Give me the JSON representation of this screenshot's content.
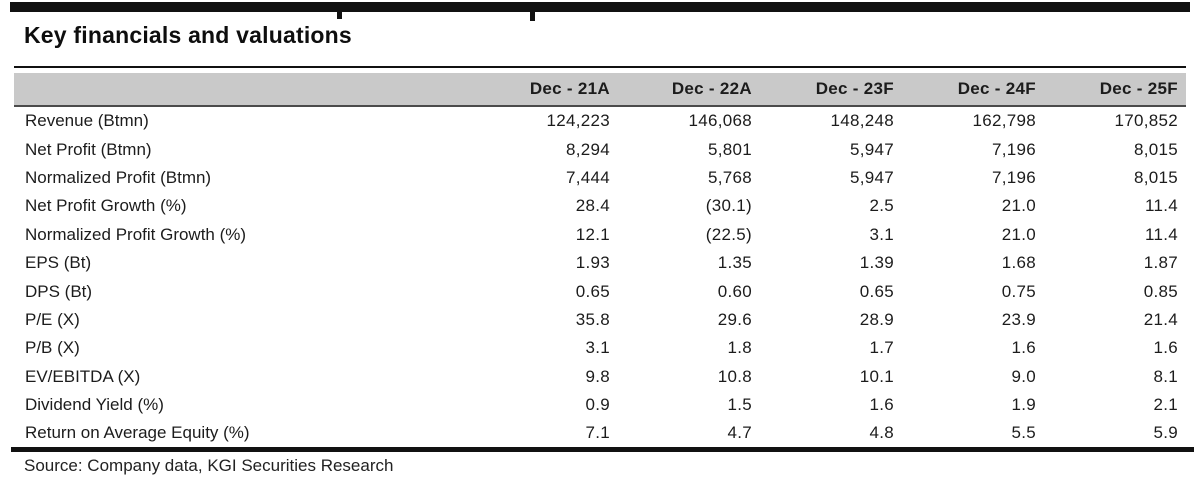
{
  "title": "Key financials and valuations",
  "source": "Source: Company data, KGI Securities Research",
  "table": {
    "header": [
      "Dec - 21A",
      "Dec - 22A",
      "Dec - 23F",
      "Dec - 24F",
      "Dec - 25F"
    ],
    "rows": [
      {
        "label": "Revenue (Btmn)",
        "values": [
          "124,223",
          "146,068",
          "148,248",
          "162,798",
          "170,852"
        ]
      },
      {
        "label": "Net Profit (Btmn)",
        "values": [
          "8,294",
          "5,801",
          "5,947",
          "7,196",
          "8,015"
        ]
      },
      {
        "label": "Normalized Profit (Btmn)",
        "values": [
          "7,444",
          "5,768",
          "5,947",
          "7,196",
          "8,015"
        ]
      },
      {
        "label": "Net Profit Growth (%)",
        "values": [
          "28.4",
          "(30.1)",
          "2.5",
          "21.0",
          "11.4"
        ]
      },
      {
        "label": "Normalized Profit Growth (%)",
        "values": [
          "12.1",
          "(22.5)",
          "3.1",
          "21.0",
          "11.4"
        ]
      },
      {
        "label": "EPS (Bt)",
        "values": [
          "1.93",
          "1.35",
          "1.39",
          "1.68",
          "1.87"
        ]
      },
      {
        "label": "DPS (Bt)",
        "values": [
          "0.65",
          "0.60",
          "0.65",
          "0.75",
          "0.85"
        ]
      },
      {
        "label": "P/E (X)",
        "values": [
          "35.8",
          "29.6",
          "28.9",
          "23.9",
          "21.4"
        ]
      },
      {
        "label": "P/B (X)",
        "values": [
          "3.1",
          "1.8",
          "1.7",
          "1.6",
          "1.6"
        ]
      },
      {
        "label": "EV/EBITDA (X)",
        "values": [
          "9.8",
          "10.8",
          "10.1",
          "9.0",
          "8.1"
        ]
      },
      {
        "label": "Dividend Yield (%)",
        "values": [
          "0.9",
          "1.5",
          "1.6",
          "1.9",
          "2.1"
        ]
      },
      {
        "label": "Return on Average Equity (%)",
        "values": [
          "7.1",
          "4.7",
          "4.8",
          "5.5",
          "5.9"
        ]
      }
    ]
  },
  "colors": {
    "header_bg": "#c9c9c9",
    "rule_black": "#111111",
    "header_rule": "#4b4b4b",
    "text": "#1c1c1c"
  }
}
